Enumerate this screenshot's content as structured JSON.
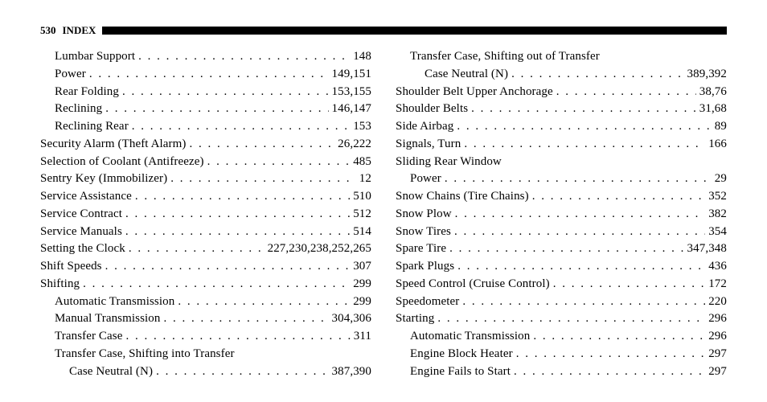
{
  "header": {
    "page_number": "530",
    "title": "INDEX"
  },
  "left": [
    {
      "indent": 1,
      "label": "Lumbar Support",
      "pages": "148"
    },
    {
      "indent": 1,
      "label": "Power",
      "pages": "149,151"
    },
    {
      "indent": 1,
      "label": "Rear Folding",
      "pages": "153,155"
    },
    {
      "indent": 1,
      "label": "Reclining",
      "pages": "146,147"
    },
    {
      "indent": 1,
      "label": "Reclining Rear",
      "pages": "153"
    },
    {
      "indent": 0,
      "label": "Security Alarm (Theft Alarm)",
      "pages": "26,222"
    },
    {
      "indent": 0,
      "label": "Selection of Coolant (Antifreeze)",
      "pages": "485"
    },
    {
      "indent": 0,
      "label": "Sentry Key (Immobilizer)",
      "pages": "12"
    },
    {
      "indent": 0,
      "label": "Service Assistance",
      "pages": "510"
    },
    {
      "indent": 0,
      "label": "Service Contract",
      "pages": "512"
    },
    {
      "indent": 0,
      "label": "Service Manuals",
      "pages": "514"
    },
    {
      "indent": 0,
      "label": "Setting the Clock",
      "pages": "227,230,238,252,265"
    },
    {
      "indent": 0,
      "label": "Shift Speeds",
      "pages": "307"
    },
    {
      "indent": 0,
      "label": "Shifting",
      "pages": "299"
    },
    {
      "indent": 1,
      "label": "Automatic Transmission",
      "pages": "299"
    },
    {
      "indent": 1,
      "label": "Manual Transmission",
      "pages": "304,306"
    },
    {
      "indent": 1,
      "label": "Transfer Case",
      "pages": "311"
    },
    {
      "indent": 1,
      "label": "Transfer Case, Shifting into Transfer",
      "pages": "",
      "nopage": true
    },
    {
      "indent": 2,
      "label": "Case Neutral (N)",
      "pages": "387,390"
    }
  ],
  "right": [
    {
      "indent": 1,
      "label": "Transfer Case, Shifting out of Transfer",
      "pages": "",
      "nopage": true
    },
    {
      "indent": 2,
      "label": "Case Neutral (N)",
      "pages": "389,392"
    },
    {
      "indent": 0,
      "label": "Shoulder Belt Upper Anchorage",
      "pages": "38,76"
    },
    {
      "indent": 0,
      "label": "Shoulder Belts",
      "pages": "31,68"
    },
    {
      "indent": 0,
      "label": "Side Airbag",
      "pages": "89"
    },
    {
      "indent": 0,
      "label": "Signals, Turn",
      "pages": "166"
    },
    {
      "indent": 0,
      "label": "Sliding Rear Window",
      "pages": "",
      "nopage": true
    },
    {
      "indent": 1,
      "label": "Power",
      "pages": "29"
    },
    {
      "indent": 0,
      "label": "Snow Chains (Tire Chains)",
      "pages": "352"
    },
    {
      "indent": 0,
      "label": "Snow Plow",
      "pages": "382"
    },
    {
      "indent": 0,
      "label": "Snow Tires",
      "pages": "354"
    },
    {
      "indent": 0,
      "label": "Spare Tire",
      "pages": "347,348"
    },
    {
      "indent": 0,
      "label": "Spark Plugs",
      "pages": "436"
    },
    {
      "indent": 0,
      "label": "Speed Control (Cruise Control)",
      "pages": "172"
    },
    {
      "indent": 0,
      "label": "Speedometer",
      "pages": "220"
    },
    {
      "indent": 0,
      "label": "Starting",
      "pages": "296"
    },
    {
      "indent": 1,
      "label": "Automatic Transmission",
      "pages": "296"
    },
    {
      "indent": 1,
      "label": "Engine Block Heater",
      "pages": "297"
    },
    {
      "indent": 1,
      "label": "Engine Fails to Start",
      "pages": "297"
    }
  ]
}
